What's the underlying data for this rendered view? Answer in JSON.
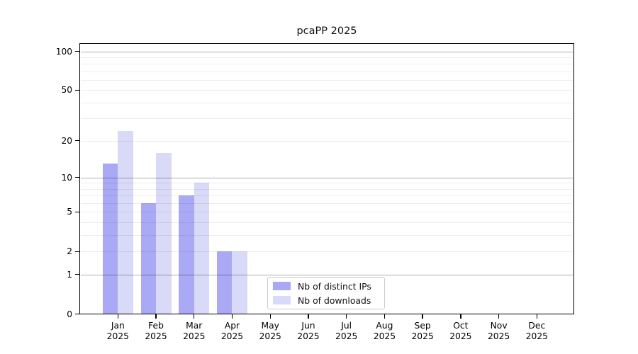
{
  "chart_data": {
    "type": "bar",
    "title": "pcaPP 2025",
    "year": "2025",
    "categories": [
      "Jan",
      "Feb",
      "Mar",
      "Apr",
      "May",
      "Jun",
      "Jul",
      "Aug",
      "Sep",
      "Oct",
      "Nov",
      "Dec"
    ],
    "series": [
      {
        "name": "Nb of distinct IPs",
        "color": "#a9a9f5",
        "values": [
          13,
          6,
          7,
          2,
          0,
          0,
          0,
          0,
          0,
          0,
          0,
          0
        ]
      },
      {
        "name": "Nb of downloads",
        "color": "#d9d9f8",
        "values": [
          24,
          16,
          9,
          2,
          0,
          0,
          0,
          0,
          0,
          0,
          0,
          0
        ]
      }
    ],
    "yscale": "log1p",
    "ylim": [
      0,
      115
    ],
    "yticks": [
      0,
      1,
      2,
      5,
      10,
      20,
      50,
      100
    ],
    "grid": {
      "major": [
        1,
        10,
        100
      ],
      "minor": [
        2,
        3,
        4,
        5,
        6,
        7,
        8,
        9,
        20,
        30,
        40,
        50,
        60,
        70,
        80,
        90
      ],
      "position": "above-bars"
    },
    "legend": {
      "position": "lower center"
    },
    "xlabel": "",
    "ylabel": ""
  }
}
